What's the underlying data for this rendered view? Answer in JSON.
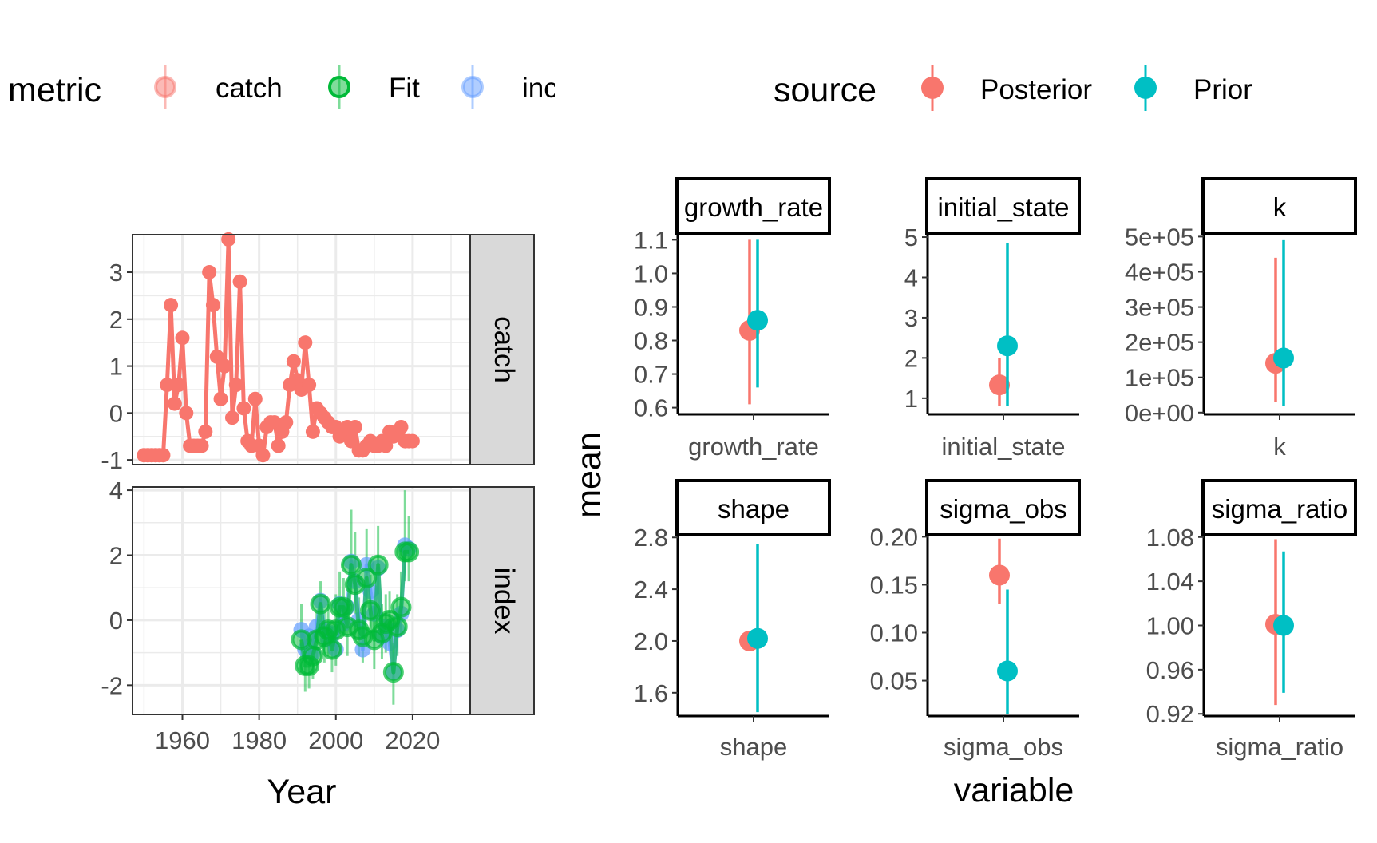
{
  "colors": {
    "catch": "#F8766D",
    "fit": "#00BA38",
    "index": "#619CFF",
    "posterior": "#F8766D",
    "prior": "#00BFC4",
    "grid": "#EBEBEB",
    "strip_bg": "#D9D9D9",
    "text": "#4D4D4D"
  },
  "left_legend": {
    "title": "metric",
    "items": [
      "catch",
      "Fit",
      "inc"
    ]
  },
  "right_legend": {
    "title": "source",
    "items": [
      "Posterior",
      "Prior"
    ]
  },
  "left_axes": {
    "xlabel": "Year",
    "xticks": [
      "1960",
      "1980",
      "2000",
      "2020"
    ]
  },
  "right_axes": {
    "xlabel": "variable",
    "ylabel": "mean"
  },
  "chart_data": [
    {
      "type": "line",
      "panel": "catch",
      "x_range": [
        1947,
        2035
      ],
      "ylim": [
        -1.1,
        3.8
      ],
      "yticks": [
        "3",
        "2",
        "1",
        "0",
        "-1"
      ],
      "series": [
        {
          "name": "catch",
          "x": [
            1950,
            1951,
            1952,
            1953,
            1954,
            1955,
            1956,
            1957,
            1958,
            1959,
            1960,
            1961,
            1962,
            1963,
            1964,
            1965,
            1966,
            1967,
            1968,
            1969,
            1970,
            1971,
            1972,
            1973,
            1974,
            1975,
            1976,
            1977,
            1978,
            1979,
            1980,
            1981,
            1982,
            1983,
            1984,
            1985,
            1986,
            1987,
            1988,
            1989,
            1990,
            1991,
            1992,
            1993,
            1994,
            1995,
            1996,
            1997,
            1998,
            1999,
            2000,
            2001,
            2002,
            2003,
            2004,
            2005,
            2006,
            2007,
            2008,
            2009,
            2010,
            2011,
            2012,
            2013,
            2014,
            2015,
            2016,
            2017,
            2018,
            2019,
            2020
          ],
          "y": [
            -0.9,
            -0.9,
            -0.9,
            -0.9,
            -0.9,
            -0.9,
            0.6,
            2.3,
            0.2,
            0.6,
            1.6,
            0.0,
            -0.7,
            -0.7,
            -0.7,
            -0.7,
            -0.4,
            3.0,
            2.3,
            1.2,
            0.3,
            1.0,
            3.7,
            -0.1,
            0.6,
            2.8,
            0.1,
            -0.6,
            -0.7,
            0.3,
            -0.7,
            -0.9,
            -0.3,
            -0.2,
            -0.2,
            -0.7,
            -0.4,
            -0.2,
            0.6,
            1.1,
            0.7,
            0.5,
            1.5,
            0.6,
            -0.4,
            0.1,
            0.0,
            -0.1,
            -0.2,
            -0.3,
            -0.3,
            -0.5,
            -0.4,
            -0.3,
            -0.6,
            -0.3,
            -0.8,
            -0.8,
            -0.7,
            -0.6,
            -0.7,
            -0.7,
            -0.6,
            -0.7,
            -0.4,
            -0.5,
            -0.4,
            -0.3,
            -0.6,
            -0.6,
            -0.6
          ]
        }
      ]
    },
    {
      "type": "line",
      "panel": "index",
      "x_range": [
        1947,
        2035
      ],
      "ylim": [
        -2.9,
        4.1
      ],
      "yticks": [
        "4",
        "2",
        "0",
        "-2"
      ],
      "series": [
        {
          "name": "inc",
          "x": [
            1991,
            1992,
            1993,
            1994,
            1995,
            1996,
            1997,
            1998,
            1999,
            2000,
            2001,
            2002,
            2003,
            2004,
            2005,
            2006,
            2007,
            2008,
            2009,
            2010,
            2011,
            2012,
            2013,
            2014,
            2015,
            2016,
            2017,
            2018,
            2019
          ],
          "y": [
            -0.3,
            -0.9,
            -0.5,
            -1.0,
            -0.2,
            0.6,
            -0.3,
            -0.6,
            -0.4,
            -0.9,
            0.5,
            -0.1,
            0.4,
            1.8,
            1.2,
            0.0,
            -0.9,
            1.7,
            0.9,
            0.2,
            1.6,
            -0.5,
            -0.2,
            -0.7,
            -1.6,
            -0.3,
            0.2,
            2.3,
            2.2
          ]
        },
        {
          "name": "Fit",
          "x": [
            1991,
            1992,
            1993,
            1994,
            1995,
            1996,
            1997,
            1998,
            1999,
            2000,
            2001,
            2002,
            2003,
            2004,
            2005,
            2006,
            2007,
            2008,
            2009,
            2010,
            2011,
            2012,
            2013,
            2014,
            2015,
            2016,
            2017,
            2018,
            2019
          ],
          "y": [
            -0.6,
            -1.4,
            -1.4,
            -1.1,
            -0.6,
            0.5,
            -0.5,
            -0.3,
            -0.9,
            -0.3,
            0.4,
            0.4,
            -0.2,
            1.7,
            1.1,
            -0.3,
            -0.5,
            1.3,
            0.3,
            -0.6,
            1.7,
            -0.4,
            -0.1,
            0.0,
            -1.6,
            -0.2,
            0.4,
            2.1,
            2.1
          ],
          "lower": [
            -1.6,
            -2.2,
            -2.1,
            -1.8,
            -1.3,
            -0.3,
            -1.3,
            -1.1,
            -1.6,
            -1.4,
            -0.5,
            -0.4,
            -1.1,
            0.8,
            0.2,
            -1.1,
            -1.3,
            0.4,
            -0.6,
            -1.5,
            0.8,
            -1.2,
            -1.0,
            -0.9,
            -2.6,
            -1.1,
            -0.5,
            1.2,
            1.2
          ],
          "upper": [
            0.5,
            -0.5,
            -0.6,
            -0.4,
            0.3,
            1.2,
            0.3,
            0.5,
            -0.2,
            0.8,
            1.5,
            1.3,
            0.6,
            3.4,
            2.7,
            0.7,
            0.5,
            2.8,
            1.4,
            0.4,
            2.9,
            0.5,
            0.8,
            0.9,
            -0.7,
            0.8,
            1.5,
            4.0,
            3.2
          ]
        }
      ]
    },
    {
      "type": "scatter",
      "panel": "growth_rate",
      "ylim": [
        0.58,
        1.12
      ],
      "yticks": [
        "1.1",
        "1.0",
        "0.9",
        "0.8",
        "0.7",
        "0.6"
      ],
      "series": [
        {
          "name": "Posterior",
          "mean": 0.83,
          "lower": 0.61,
          "upper": 1.1
        },
        {
          "name": "Prior",
          "mean": 0.86,
          "lower": 0.66,
          "upper": 1.1
        }
      ]
    },
    {
      "type": "scatter",
      "panel": "initial_state",
      "ylim": [
        0.6,
        5.1
      ],
      "yticks": [
        "5",
        "4",
        "3",
        "2",
        "1"
      ],
      "series": [
        {
          "name": "Posterior",
          "mean": 1.33,
          "lower": 0.8,
          "upper": 2.0
        },
        {
          "name": "Prior",
          "mean": 2.3,
          "lower": 0.8,
          "upper": 4.85
        }
      ]
    },
    {
      "type": "scatter",
      "panel": "k",
      "ylim": [
        -5000,
        510000
      ],
      "yticks": [
        "5e+05",
        "4e+05",
        "3e+05",
        "2e+05",
        "1e+05",
        "0e+00"
      ],
      "series": [
        {
          "name": "Posterior",
          "mean": 140000,
          "lower": 30000,
          "upper": 440000
        },
        {
          "name": "Prior",
          "mean": 155000,
          "lower": 20000,
          "upper": 490000
        }
      ]
    },
    {
      "type": "scatter",
      "panel": "shape",
      "ylim": [
        1.42,
        2.82
      ],
      "yticks": [
        "2.8",
        "2.4",
        "2.0",
        "1.6"
      ],
      "series": [
        {
          "name": "Posterior",
          "mean": 2.0,
          "lower": 1.95,
          "upper": 2.05
        },
        {
          "name": "Prior",
          "mean": 2.02,
          "lower": 1.45,
          "upper": 2.75
        }
      ]
    },
    {
      "type": "scatter",
      "panel": "sigma_obs",
      "ylim": [
        0.013,
        0.202
      ],
      "yticks": [
        "0.20",
        "0.15",
        "0.10",
        "0.05"
      ],
      "series": [
        {
          "name": "Posterior",
          "mean": 0.16,
          "lower": 0.13,
          "upper": 0.198
        },
        {
          "name": "Prior",
          "mean": 0.06,
          "lower": 0.015,
          "upper": 0.145
        }
      ]
    },
    {
      "type": "scatter",
      "panel": "sigma_ratio",
      "ylim": [
        0.918,
        1.082
      ],
      "yticks": [
        "1.08",
        "1.04",
        "1.00",
        "0.96",
        "0.92"
      ],
      "series": [
        {
          "name": "Posterior",
          "mean": 1.001,
          "lower": 0.928,
          "upper": 1.078
        },
        {
          "name": "Prior",
          "mean": 1.0,
          "lower": 0.939,
          "upper": 1.067
        }
      ]
    }
  ]
}
